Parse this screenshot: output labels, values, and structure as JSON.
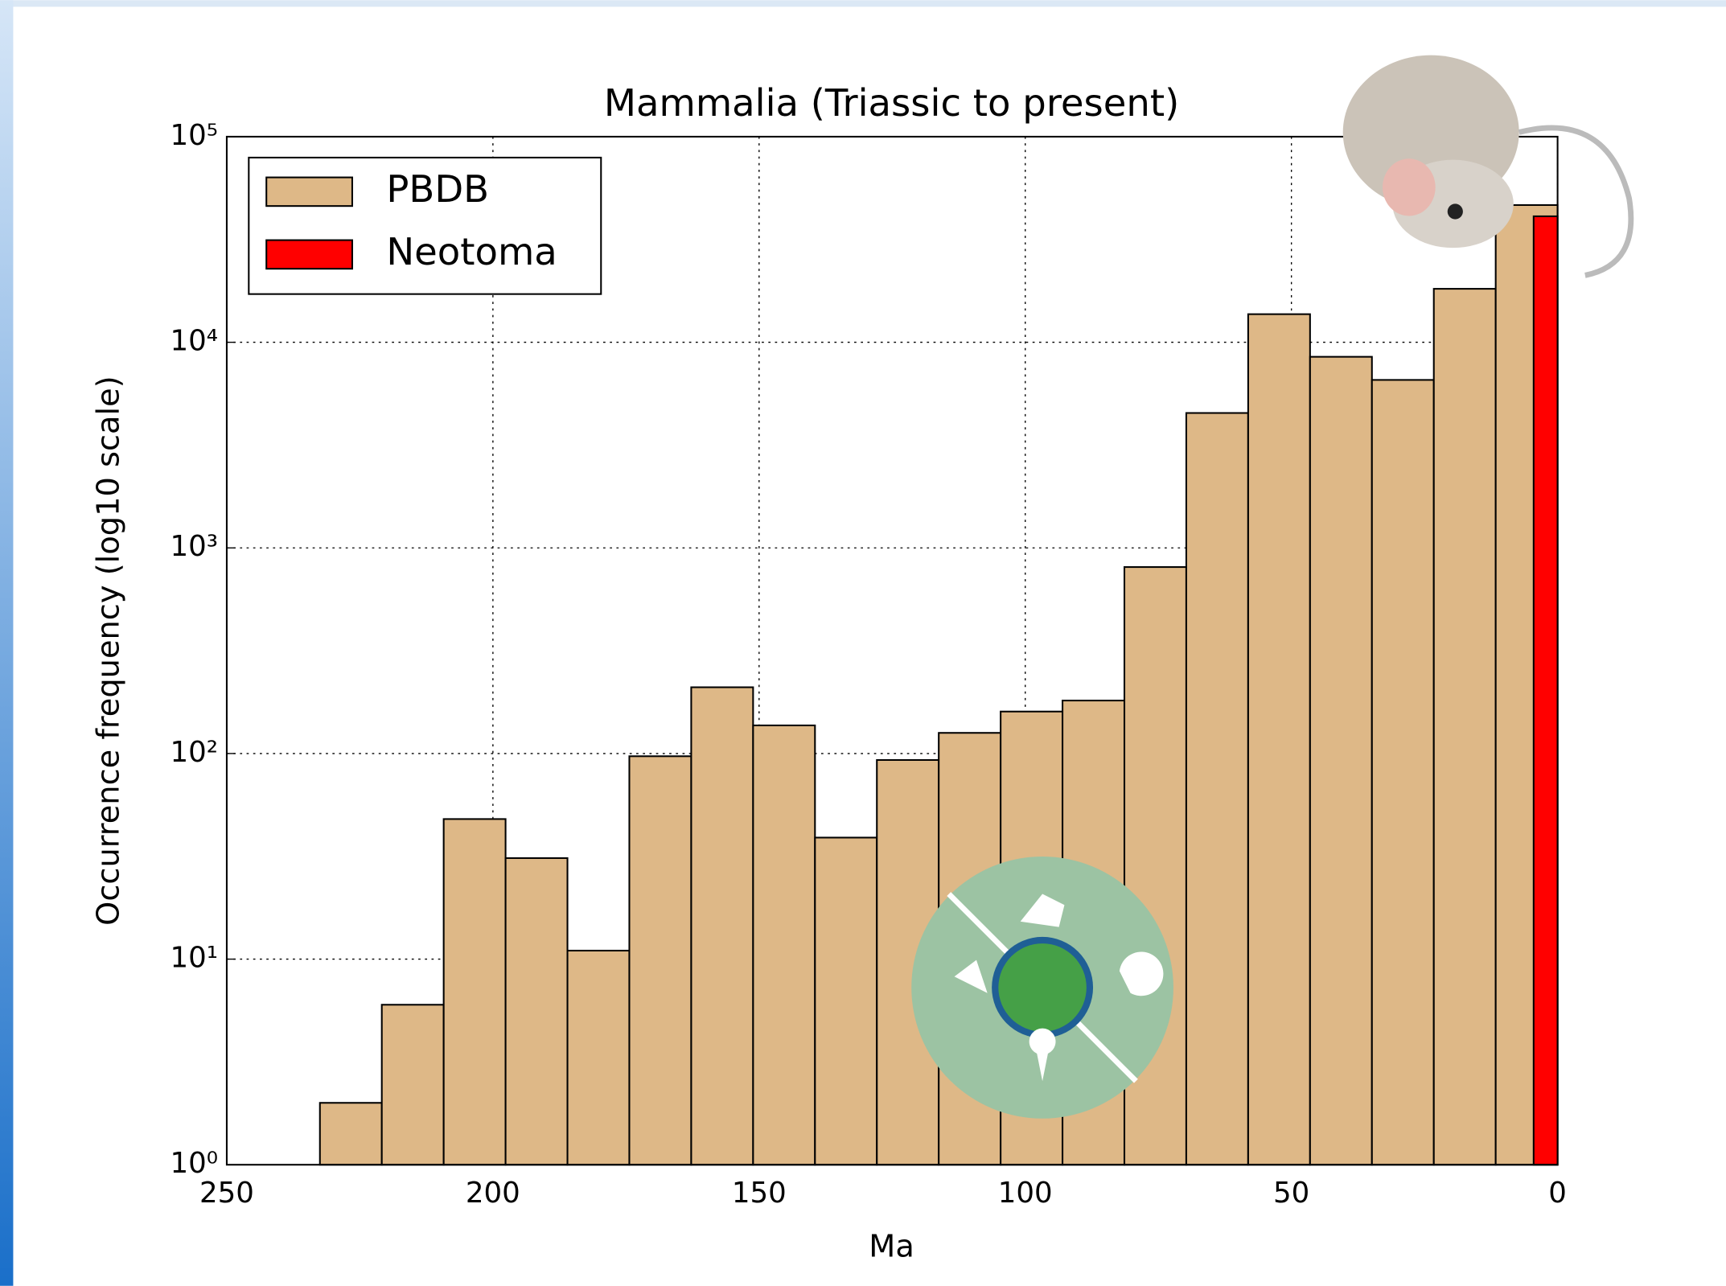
{
  "chart_data": {
    "type": "histogram",
    "title": "Mammalia (Triassic to present)",
    "xlabel": "Ma",
    "ylabel": "Occurrence frequency (log10 scale)",
    "xlim": [
      250,
      0
    ],
    "xticks": [
      250,
      200,
      150,
      100,
      50,
      0
    ],
    "ylim": [
      1,
      100000
    ],
    "log_y": true,
    "yticks": [
      {
        "value": 1,
        "label": "10⁰"
      },
      {
        "value": 10,
        "label": "10¹"
      },
      {
        "value": 100,
        "label": "10²"
      },
      {
        "value": 1000,
        "label": "10³"
      },
      {
        "value": 10000,
        "label": "10⁴"
      },
      {
        "value": 100000,
        "label": "10⁵"
      }
    ],
    "grid": true,
    "legend": "upper left",
    "series": [
      {
        "name": "PBDB",
        "color": "#deb887",
        "bins": [
          232.5,
          220.875,
          209.25,
          197.625,
          186,
          174.375,
          162.75,
          151.125,
          139.5,
          127.875,
          116.25,
          104.625,
          93,
          81.375,
          69.75,
          58.125,
          46.5,
          34.875,
          23.25,
          11.625,
          0
        ],
        "values": [
          2,
          6,
          48,
          31,
          11,
          97,
          210,
          137,
          39,
          93,
          126,
          160,
          181,
          807,
          4530,
          13700,
          8500,
          6560,
          18200,
          46500
        ]
      },
      {
        "name": "Neotoma",
        "color": "#ff0000",
        "bins": [
          4.5,
          0
        ],
        "values": [
          41000
        ]
      }
    ]
  }
}
